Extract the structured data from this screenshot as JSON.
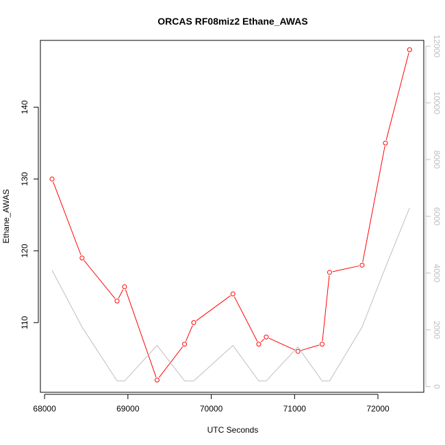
{
  "chart_data": {
    "type": "line",
    "title": "ORCAS RF08miz2 Ethane_AWAS",
    "xlabel": "UTC Seconds",
    "ylabel": "Ethane_AWAS",
    "y2label": "",
    "xlim": [
      67950,
      72550
    ],
    "ylim": [
      100.3,
      149.3
    ],
    "y2lim": [
      -200,
      12200
    ],
    "x_ticks": [
      68000,
      69000,
      70000,
      71000,
      72000
    ],
    "y_ticks": [
      110,
      120,
      130,
      140
    ],
    "y2_ticks": [
      0,
      2000,
      4000,
      6000,
      8000,
      10000,
      12000
    ],
    "grid": false,
    "colors": {
      "primary": "#ff0000",
      "secondary": "#bebebe",
      "axis": "#000000",
      "right_axis": "#bebebe"
    },
    "series": [
      {
        "axis": "left",
        "style": "line-with-open-circles",
        "x": [
          68090,
          68450,
          68870,
          68960,
          69350,
          69680,
          69790,
          70260,
          70570,
          70660,
          71040,
          71330,
          71420,
          71810,
          72090,
          72380
        ],
        "values": [
          130,
          119,
          113,
          115,
          102,
          107,
          110,
          114,
          107,
          108,
          106,
          107,
          117,
          118,
          135,
          148
        ]
      },
      {
        "axis": "right",
        "style": "line",
        "x": [
          68090,
          68450,
          68870,
          68960,
          69350,
          69680,
          69790,
          70260,
          70570,
          70660,
          71040,
          71330,
          71420,
          71810,
          72090,
          72380
        ],
        "values": [
          4100,
          2100,
          200,
          200,
          1450,
          200,
          200,
          1450,
          200,
          200,
          1400,
          200,
          200,
          2100,
          4200,
          6300
        ]
      }
    ]
  }
}
